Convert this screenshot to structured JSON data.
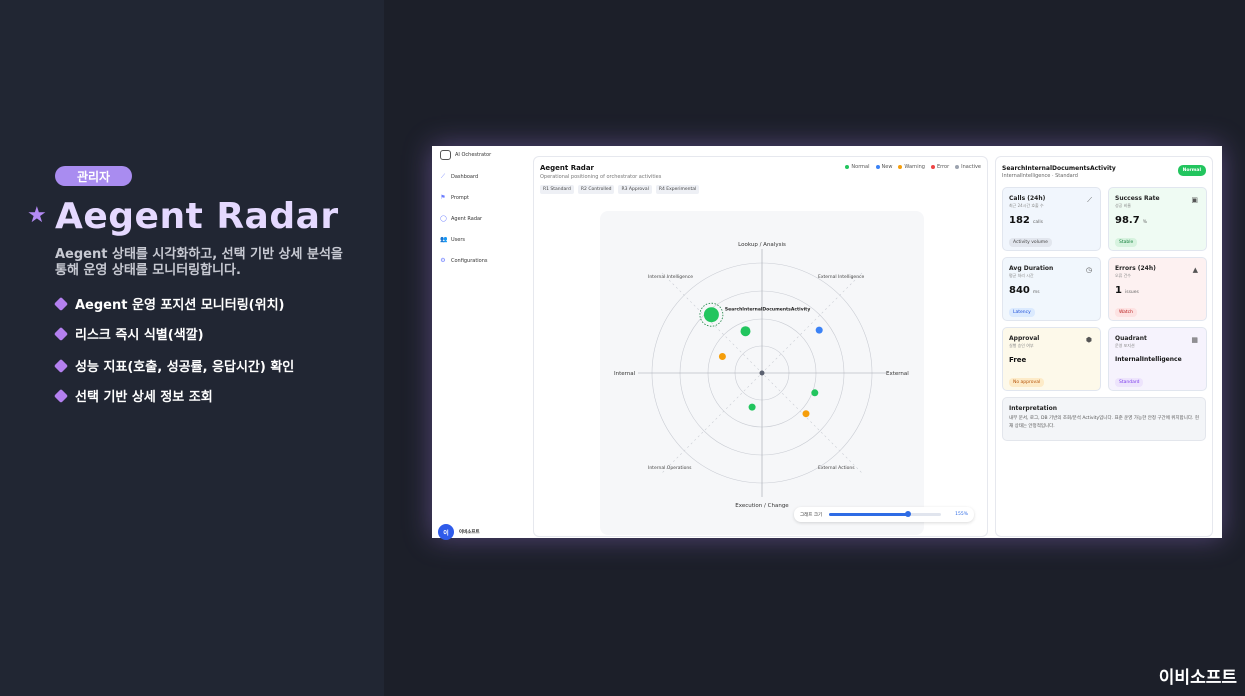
{
  "slide": {
    "badge": "관리자",
    "title": "Aegent Radar",
    "description": "Aegent 상태를 시각화하고, 선택 기반 상세 분석을 통해 운영 상태를 모니터링합니다.",
    "bullets": [
      "Aegent 운영 포지션 모니터링(위치)",
      "리스크 즉시 식별(색깔)",
      "성능 지표(호출, 성공률, 응답시간) 확인",
      "선택 기반 상세 정보 조회"
    ],
    "brand": "이비소프트"
  },
  "app": {
    "logo_text": "AI Ochestrator",
    "nav": [
      {
        "label": "Dashboard",
        "icon": "chart-line-icon"
      },
      {
        "label": "Prompt",
        "icon": "flag-icon"
      },
      {
        "label": "Agent Radar",
        "icon": "radar-icon"
      },
      {
        "label": "Users",
        "icon": "users-icon"
      },
      {
        "label": "Configurations",
        "icon": "gear-icon"
      }
    ],
    "user": {
      "avatar": "이",
      "name": "이비소프트"
    }
  },
  "radar_card": {
    "title": "Aegent Radar",
    "subtitle": "Operational positioning of orchestrator activities",
    "chips": [
      "R1 Standard",
      "R2 Controlled",
      "R3 Approval",
      "R4 Experimental"
    ],
    "legend": [
      {
        "label": "Normal",
        "color": "#22c55e"
      },
      {
        "label": "New",
        "color": "#3b82f6"
      },
      {
        "label": "Warning",
        "color": "#f59e0b"
      },
      {
        "label": "Error",
        "color": "#ef4444"
      },
      {
        "label": "Inactive",
        "color": "#9ca3af"
      }
    ],
    "axes": {
      "top": "Lookup / Analysis",
      "bottom": "Execution / Change",
      "left": "Internal",
      "right": "External",
      "q_top_left": "Internal Intelligence",
      "q_top_right": "External Intelligence",
      "q_bottom_left": "Internal Operations",
      "q_bottom_right": "External Actions"
    },
    "selected_label": "SearchInternalDocumentsActivity",
    "slider": {
      "label": "그래프 크기",
      "value": 155,
      "value_label": "155%"
    }
  },
  "detail": {
    "title": "SearchInternalDocumentsActivity",
    "subtitle": "InternalIntelligence · Standard",
    "status": "Normal",
    "metrics": [
      {
        "title": "Calls (24h)",
        "sub": "최근 24시간 호출 수",
        "value": "182",
        "unit": "calls",
        "tag": "Activity volume",
        "icon": "chart-icon"
      },
      {
        "title": "Success Rate",
        "sub": "성공 비율",
        "value": "98.7",
        "unit": "%",
        "tag": "Stable",
        "icon": "gauge-icon"
      },
      {
        "title": "Avg Duration",
        "sub": "평균 처리 시간",
        "value": "840",
        "unit": "ms",
        "tag": "Latency",
        "icon": "clock-icon"
      },
      {
        "title": "Errors (24h)",
        "sub": "오류 건수",
        "value": "1",
        "unit": "issues",
        "tag": "Watch",
        "icon": "warning-icon"
      },
      {
        "title": "Approval",
        "sub": "실행 승인 여부",
        "value": "Free",
        "unit": "",
        "tag": "No approval",
        "icon": "shield-icon"
      },
      {
        "title": "Quadrant",
        "sub": "운영 포지션",
        "value": "InternalIntelligence",
        "unit": "",
        "tag": "Standard",
        "icon": "grid-icon"
      }
    ],
    "interpretation_title": "Interpretation",
    "interpretation_body": "내부 문서, 로그, DB 기반의 조회/분석 Activity입니다. 표준 운영 가능한 안정 구간에 위치합니다. 현재 상태는 안정적입니다."
  },
  "chart_data": {
    "type": "scatter",
    "x_axis": [
      "Internal",
      "External"
    ],
    "y_axis": [
      "Execution / Change",
      "Lookup / Analysis"
    ],
    "xlim": [
      -1,
      1
    ],
    "ylim": [
      -1,
      1
    ],
    "points": [
      {
        "x": -0.46,
        "y": 0.53,
        "status": "Normal",
        "selected": true,
        "size": "large"
      },
      {
        "x": -0.15,
        "y": 0.38,
        "status": "Normal"
      },
      {
        "x": 0.52,
        "y": 0.39,
        "status": "New"
      },
      {
        "x": -0.36,
        "y": 0.15,
        "status": "Warning"
      },
      {
        "x": 0.48,
        "y": -0.18,
        "status": "Normal"
      },
      {
        "x": -0.09,
        "y": -0.31,
        "status": "Normal"
      },
      {
        "x": 0.4,
        "y": -0.37,
        "status": "Warning"
      }
    ]
  }
}
